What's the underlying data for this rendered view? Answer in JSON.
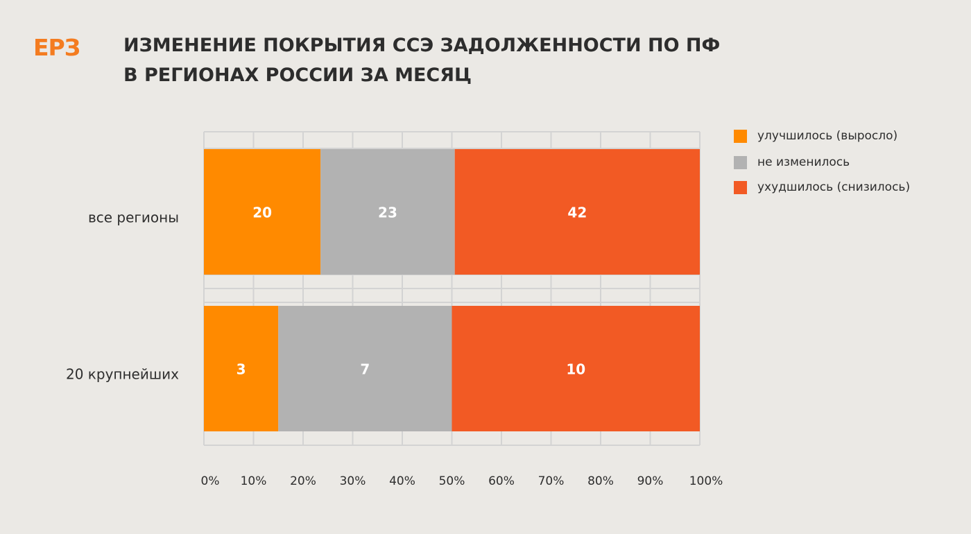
{
  "header": {
    "logo": "ЕРЗ",
    "title_line1": "ИЗМЕНЕНИЕ ПОКРЫТИЯ ССЭ ЗАДОЛЖЕННОСТИ ПО ПФ",
    "title_line2": "В РЕГИОНАХ РОССИИ ЗА МЕСЯЦ"
  },
  "colors": {
    "background": "#ebe9e5",
    "improved": "#ff8a00",
    "unchanged": "#b2b2b2",
    "worsened": "#f25a24",
    "grid": "#d3d3d3",
    "text": "#2d2d2d"
  },
  "chart_data": {
    "type": "bar",
    "orientation": "horizontal",
    "stacked": "percent",
    "categories": [
      "все регионы",
      "20 крупнейших"
    ],
    "series": [
      {
        "name": "улучшилось (выросло)",
        "values": [
          20,
          3
        ]
      },
      {
        "name": "не изменилось",
        "values": [
          23,
          7
        ]
      },
      {
        "name": "ухудшилось (снизилось)",
        "values": [
          42,
          10
        ]
      }
    ],
    "xlim": [
      0,
      100
    ],
    "x_ticks": [
      "0%",
      "10%",
      "20%",
      "30%",
      "40%",
      "50%",
      "60%",
      "70%",
      "80%",
      "90%",
      "100%"
    ],
    "grid": true,
    "legend_position": "top-right",
    "data_labels": true
  }
}
